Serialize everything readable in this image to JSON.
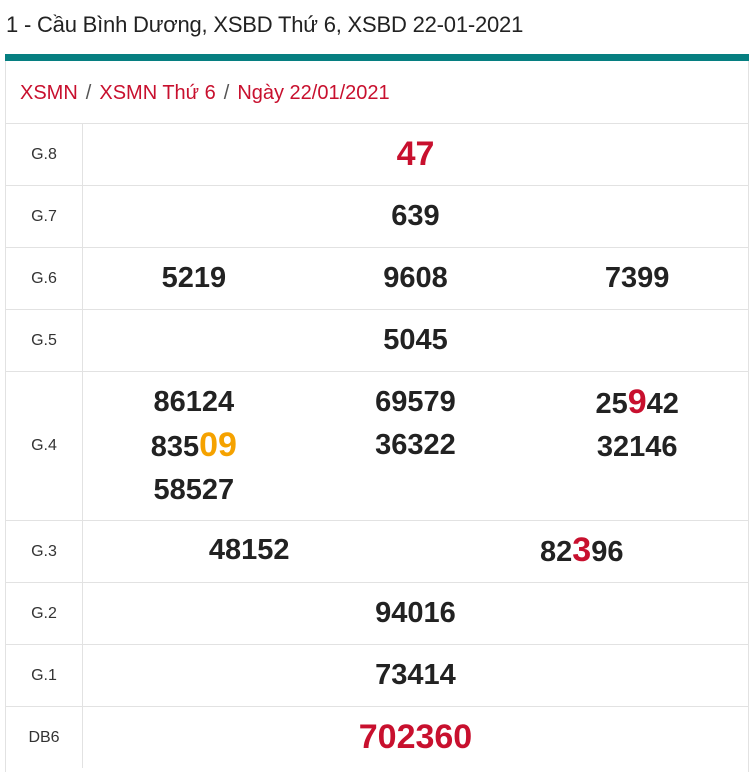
{
  "title": "1 - Cầu Bình Dương, XSBD Thứ 6, XSBD 22-01-2021",
  "colors": {
    "accent_bar": "#067f81",
    "red": "#c8102e",
    "orange": "#f5a200"
  },
  "breadcrumb": [
    "XSMN",
    "XSMN Thứ 6",
    "Ngày 22/01/2021"
  ],
  "breadcrumb_separator": "/",
  "results": [
    {
      "label": "G.8",
      "cols": [
        [
          {
            "p": "",
            "h": "",
            "s": "47",
            "c": ""
          }
        ]
      ],
      "big": true
    },
    {
      "label": "G.7",
      "cols": [
        [
          {
            "p": "639",
            "h": "",
            "s": "",
            "c": ""
          }
        ]
      ]
    },
    {
      "label": "G.6",
      "cols": [
        [
          {
            "p": "5219",
            "h": "",
            "s": "",
            "c": ""
          }
        ],
        [
          {
            "p": "9608",
            "h": "",
            "s": "",
            "c": ""
          }
        ],
        [
          {
            "p": "7399",
            "h": "",
            "s": "",
            "c": ""
          }
        ]
      ]
    },
    {
      "label": "G.5",
      "cols": [
        [
          {
            "p": "5045",
            "h": "",
            "s": "",
            "c": ""
          }
        ]
      ]
    },
    {
      "label": "G.4",
      "cols": [
        [
          {
            "p": "86124",
            "h": "",
            "s": "",
            "c": ""
          },
          {
            "p": "835",
            "h": "09",
            "s": "",
            "c": "orange"
          },
          {
            "p": "58527",
            "h": "",
            "s": "",
            "c": ""
          }
        ],
        [
          {
            "p": "69579",
            "h": "",
            "s": "",
            "c": ""
          },
          {
            "p": "36322",
            "h": "",
            "s": "",
            "c": ""
          }
        ],
        [
          {
            "p": "25",
            "h": "9",
            "s": "42",
            "c": "red"
          },
          {
            "p": "32146",
            "h": "",
            "s": "",
            "c": ""
          }
        ]
      ]
    },
    {
      "label": "G.3",
      "cols": [
        [
          {
            "p": "48152",
            "h": "",
            "s": "",
            "c": ""
          }
        ],
        [
          {
            "p": "82",
            "h": "3",
            "s": "96",
            "c": "red"
          }
        ]
      ]
    },
    {
      "label": "G.2",
      "cols": [
        [
          {
            "p": "94016",
            "h": "",
            "s": "",
            "c": ""
          }
        ]
      ]
    },
    {
      "label": "G.1",
      "cols": [
        [
          {
            "p": "73414",
            "h": "",
            "s": "",
            "c": ""
          }
        ]
      ]
    },
    {
      "label": "DB6",
      "cols": [
        [
          {
            "p": "",
            "h": "",
            "s": "702360",
            "c": ""
          }
        ]
      ],
      "big": true
    }
  ]
}
